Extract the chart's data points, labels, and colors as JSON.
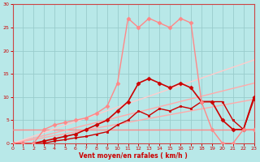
{
  "xlabel": "Vent moyen/en rafales ( km/h )",
  "bg_color": "#b8e8e8",
  "grid_color": "#99cccc",
  "xlim": [
    0,
    23
  ],
  "ylim": [
    0,
    30
  ],
  "yticks": [
    0,
    5,
    10,
    15,
    20,
    25,
    30
  ],
  "xticks": [
    0,
    1,
    2,
    3,
    4,
    5,
    6,
    7,
    8,
    9,
    10,
    11,
    12,
    13,
    14,
    15,
    16,
    17,
    18,
    19,
    20,
    21,
    22,
    23
  ],
  "lines": [
    {
      "x": [
        0,
        23
      ],
      "y": [
        3,
        3
      ],
      "color": "#ff8888",
      "lw": 1.0,
      "marker": null,
      "ls": "-"
    },
    {
      "x": [
        0,
        23
      ],
      "y": [
        0,
        9.5
      ],
      "color": "#ffaaaa",
      "lw": 1.0,
      "marker": null,
      "ls": "-"
    },
    {
      "x": [
        0,
        23
      ],
      "y": [
        0,
        13
      ],
      "color": "#ffaaaa",
      "lw": 1.0,
      "marker": null,
      "ls": "-"
    },
    {
      "x": [
        0,
        23
      ],
      "y": [
        0,
        18
      ],
      "color": "#ffcccc",
      "lw": 1.0,
      "marker": null,
      "ls": "-"
    },
    {
      "x": [
        0,
        1,
        2,
        3,
        4,
        5,
        6,
        7,
        8,
        9,
        10,
        11,
        12,
        13,
        14,
        15,
        16,
        17,
        18,
        19,
        20,
        21,
        22,
        23
      ],
      "y": [
        0,
        0,
        0,
        0,
        0.5,
        0.8,
        1.2,
        1.5,
        2,
        2.5,
        4,
        5,
        7,
        6,
        7.5,
        7,
        8,
        7.5,
        9,
        9,
        9,
        5,
        3,
        9.5
      ],
      "color": "#cc0000",
      "lw": 1.0,
      "marker": "s",
      "ms": 2.0,
      "ls": "-"
    },
    {
      "x": [
        0,
        1,
        2,
        3,
        4,
        5,
        6,
        7,
        8,
        9,
        10,
        11,
        12,
        13,
        14,
        15,
        16,
        17,
        18,
        19,
        20,
        21,
        22,
        23
      ],
      "y": [
        0,
        0,
        0,
        0.5,
        1,
        1.5,
        2,
        3,
        4,
        5,
        7,
        9,
        13,
        14,
        13,
        12,
        13,
        12,
        9,
        9,
        5,
        3,
        3,
        10
      ],
      "color": "#cc0000",
      "lw": 1.2,
      "marker": "D",
      "ms": 2.5,
      "ls": "-"
    },
    {
      "x": [
        0,
        1,
        2,
        3,
        4,
        5,
        6,
        7,
        8,
        9,
        10,
        11,
        12,
        13,
        14,
        15,
        16,
        17,
        18,
        19,
        20,
        21,
        22,
        23
      ],
      "y": [
        0,
        0,
        0,
        3,
        4,
        4.5,
        5,
        5.5,
        6.5,
        8,
        13,
        27,
        25,
        27,
        26,
        25,
        27,
        26,
        9,
        3,
        0,
        0,
        3,
        3
      ],
      "color": "#ff8888",
      "lw": 1.0,
      "marker": "D",
      "ms": 2.5,
      "ls": "-"
    }
  ]
}
